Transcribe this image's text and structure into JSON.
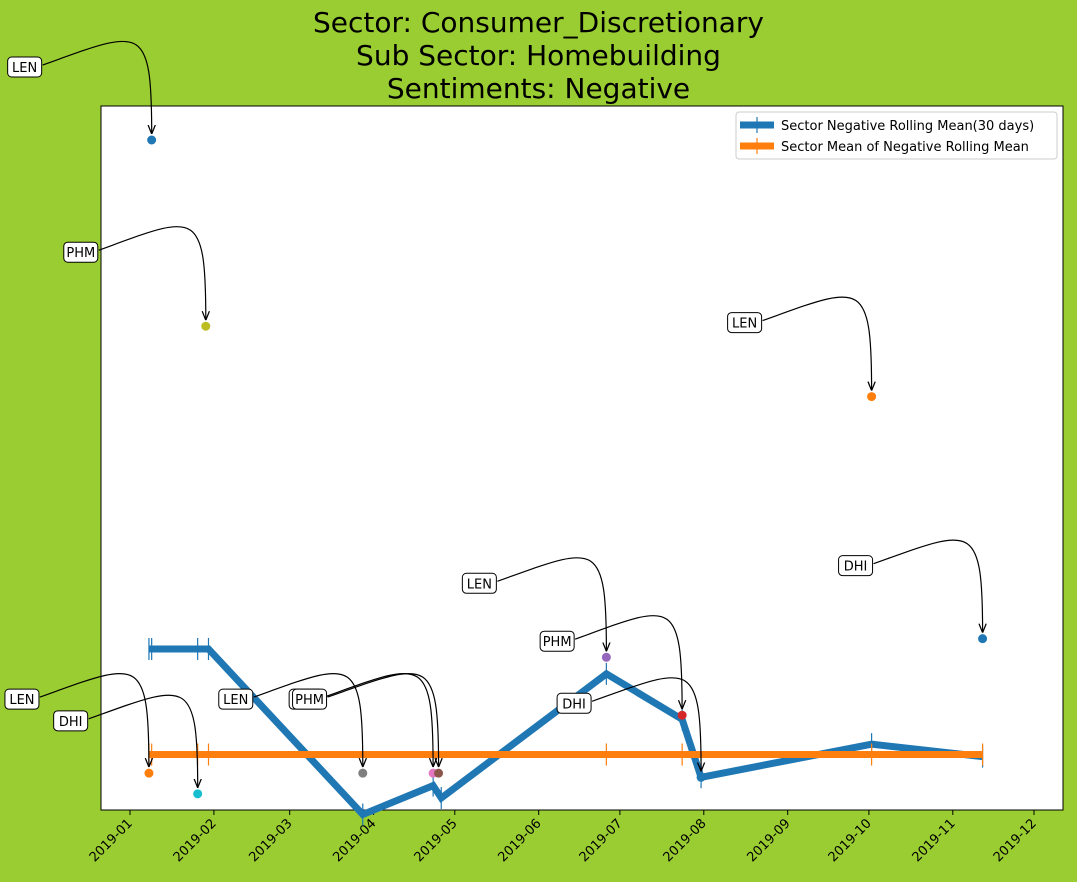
{
  "title_lines": [
    "Sector:  Consumer_Discretionary",
    "Sub Sector:  Homebuilding",
    "Sentiments:  Negative"
  ],
  "colors": {
    "background": "#9acd32",
    "rolling": "#1f77b4",
    "mean": "#ff7f0e"
  },
  "chart_data": {
    "type": "line",
    "title": "Sector:  Consumer_Discretionary\nSub Sector:  Homebuilding\nSentiments:  Negative",
    "x_axis": {
      "type": "date",
      "range": [
        "2019-01-01",
        "2019-12-01"
      ],
      "tick_labels": [
        "2019-01",
        "2019-02",
        "2019-03",
        "2019-04",
        "2019-05",
        "2019-06",
        "2019-07",
        "2019-08",
        "2019-09",
        "2019-10",
        "2019-11",
        "2019-12"
      ]
    },
    "y_axis": {
      "tick_labels_shown": false
    },
    "grid": false,
    "legend": "top-right",
    "series": [
      {
        "name": "Sector Negative Rolling Mean(30 days)",
        "color": "#1f77b4",
        "marker": "|",
        "points": [
          {
            "x": "2019-01-08",
            "y": -0.243
          },
          {
            "x": "2019-01-09",
            "y": -0.243
          },
          {
            "x": "2019-01-26",
            "y": -0.243
          },
          {
            "x": "2019-01-30",
            "y": -0.243
          },
          {
            "x": "2019-03-28",
            "y": -0.283
          },
          {
            "x": "2019-04-23",
            "y": -0.276
          },
          {
            "x": "2019-04-26",
            "y": -0.279
          },
          {
            "x": "2019-06-26",
            "y": -0.249
          },
          {
            "x": "2019-07-24",
            "y": -0.26
          },
          {
            "x": "2019-07-31",
            "y": -0.274
          },
          {
            "x": "2019-10-02",
            "y": -0.266
          },
          {
            "x": "2019-11-12",
            "y": -0.269
          }
        ]
      },
      {
        "name": "Sector Mean of Negative Rolling Mean",
        "color": "#ff7f0e",
        "marker": "|",
        "points": [
          {
            "x": "2019-01-08",
            "y": -0.2685
          },
          {
            "x": "2019-01-09",
            "y": -0.2685
          },
          {
            "x": "2019-01-26",
            "y": -0.2685
          },
          {
            "x": "2019-01-30",
            "y": -0.2685
          },
          {
            "x": "2019-06-26",
            "y": -0.2685
          },
          {
            "x": "2019-07-24",
            "y": -0.2685
          },
          {
            "x": "2019-10-02",
            "y": -0.2685
          },
          {
            "x": "2019-11-12",
            "y": -0.2685
          }
        ]
      }
    ],
    "annotated_points": [
      {
        "label": "LEN",
        "x": "2019-01-09",
        "y": -0.12,
        "color": "#1f77b4"
      },
      {
        "label": "LEN",
        "x": "2019-01-08",
        "y": -0.273,
        "color": "#ff7f0e"
      },
      {
        "label": "DHI",
        "x": "2019-01-26",
        "y": -0.278,
        "color": "#17becf"
      },
      {
        "label": "PHM",
        "x": "2019-01-29",
        "y": -0.165,
        "color": "#bcbd22"
      },
      {
        "label": "LEN",
        "x": "2019-03-28",
        "y": -0.273,
        "color": "#7f7f7f"
      },
      {
        "label": "PHM",
        "x": "2019-04-23",
        "y": -0.273,
        "color": "#e377c2"
      },
      {
        "label": "PHM",
        "x": "2019-04-25",
        "y": -0.273,
        "color": "#8c564b"
      },
      {
        "label": "LEN",
        "x": "2019-06-26",
        "y": -0.245,
        "color": "#9467bd"
      },
      {
        "label": "PHM",
        "x": "2019-07-24",
        "y": -0.259,
        "color": "#d62728"
      },
      {
        "label": "DHI",
        "x": "2019-07-31",
        "y": -0.274,
        "color": "#1f77b4"
      },
      {
        "label": "LEN",
        "x": "2019-10-02",
        "y": -0.182,
        "color": "#ff7f0e"
      },
      {
        "label": "DHI",
        "x": "2019-11-12",
        "y": -0.2405,
        "color": "#1f77b4"
      }
    ]
  }
}
